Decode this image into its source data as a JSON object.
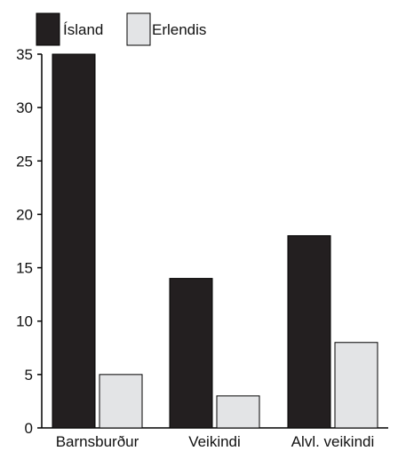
{
  "chart_data": {
    "type": "bar",
    "categories": [
      "Barnsburður",
      "Veikindi",
      "Alvl. veikindi"
    ],
    "series": [
      {
        "name": "Ísland",
        "values": [
          35,
          14,
          18
        ],
        "color": "#231f20"
      },
      {
        "name": "Erlendis",
        "values": [
          5,
          3,
          8
        ],
        "color": "#e3e4e6"
      }
    ],
    "yticks": [
      0,
      5,
      10,
      15,
      20,
      25,
      30,
      35
    ],
    "ylim": [
      0,
      35
    ],
    "title": "",
    "xlabel": "",
    "ylabel": "",
    "grid": false,
    "legend": "top-left"
  }
}
